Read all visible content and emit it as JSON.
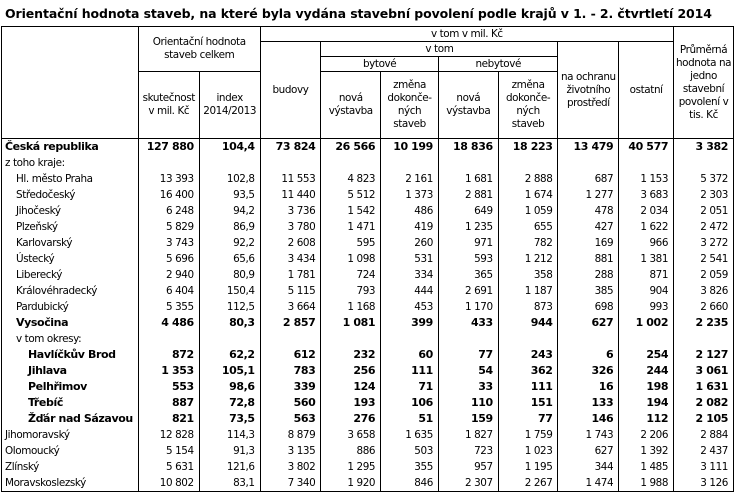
{
  "title": "Orientační hodnota staveb, na které byla vydána stavební povolení podle krajů v 1. - 2. čtvrtletí  2014",
  "header": {
    "total_group": "Orientační hodnota staveb celkem",
    "actual": "skutečnost v mil. Kč",
    "index": "index 2014/2013",
    "breakdown_group": "v tom v mil. Kč",
    "buildings": "budovy",
    "v_tom": "v tom",
    "residential": "bytové",
    "nonresidential": "nebytové",
    "new_construction": "nová výstavba",
    "change": "změna dokonče-ných staveb",
    "new_construction2": "nová výstavba",
    "change2": "změna dokonče-ných staveb",
    "environment": "na ochranu životního prostředí",
    "other": "ostatní",
    "average": "Průměrná hodnota na jedno stavební povolení v tis. Kč"
  },
  "rows": [
    {
      "label": "Česká republika",
      "bold": true,
      "indent": 0,
      "values": [
        "127 880",
        "104,4",
        "73 824",
        "26 566",
        "10 199",
        "18 836",
        "18 223",
        "13 479",
        "40 577",
        "3 382"
      ]
    },
    {
      "label": "z toho kraje:",
      "indent": 0,
      "values": [
        "",
        "",
        "",
        "",
        "",
        "",
        "",
        "",
        "",
        ""
      ]
    },
    {
      "label": "Hl. město Praha",
      "indent": 1,
      "values": [
        "13 393",
        "102,8",
        "11 553",
        "4 823",
        "2 161",
        "1 681",
        "2 888",
        "687",
        "1 153",
        "5 372"
      ]
    },
    {
      "label": "Středočeský",
      "indent": 1,
      "values": [
        "16 400",
        "93,5",
        "11 440",
        "5 512",
        "1 373",
        "2 881",
        "1 674",
        "1 277",
        "3 683",
        "2 303"
      ]
    },
    {
      "label": "Jihočeský",
      "indent": 1,
      "values": [
        "6 248",
        "94,2",
        "3 736",
        "1 542",
        "486",
        "649",
        "1 059",
        "478",
        "2 034",
        "2 051"
      ]
    },
    {
      "label": "Plzeňský",
      "indent": 1,
      "values": [
        "5 829",
        "86,9",
        "3 780",
        "1 471",
        "419",
        "1 235",
        "655",
        "427",
        "1 622",
        "2 472"
      ]
    },
    {
      "label": "Karlovarský",
      "indent": 1,
      "values": [
        "3 743",
        "92,2",
        "2 608",
        "595",
        "260",
        "971",
        "782",
        "169",
        "966",
        "3 272"
      ]
    },
    {
      "label": "Ústecký",
      "indent": 1,
      "values": [
        "5 696",
        "65,6",
        "3 434",
        "1 098",
        "531",
        "593",
        "1 212",
        "881",
        "1 381",
        "2 541"
      ]
    },
    {
      "label": "Liberecký",
      "indent": 1,
      "values": [
        "2 940",
        "80,9",
        "1 781",
        "724",
        "334",
        "365",
        "358",
        "288",
        "871",
        "2 059"
      ]
    },
    {
      "label": "Královéhradecký",
      "indent": 1,
      "values": [
        "6 404",
        "150,4",
        "5 115",
        "793",
        "444",
        "2 691",
        "1 187",
        "385",
        "904",
        "3 826"
      ]
    },
    {
      "label": "Pardubický",
      "indent": 1,
      "values": [
        "5 355",
        "112,5",
        "3 664",
        "1 168",
        "453",
        "1 170",
        "873",
        "698",
        "993",
        "2 660"
      ]
    },
    {
      "label": "Vysočina",
      "bold": true,
      "indent": 1,
      "values": [
        "4 486",
        "80,3",
        "2 857",
        "1 081",
        "399",
        "433",
        "944",
        "627",
        "1 002",
        "2 235"
      ]
    },
    {
      "label": "v tom okresy:",
      "indent": 1,
      "values": [
        "",
        "",
        "",
        "",
        "",
        "",
        "",
        "",
        "",
        ""
      ]
    },
    {
      "label": "Havlíčkův Brod",
      "bold": true,
      "indent": 2,
      "values": [
        "872",
        "62,2",
        "612",
        "232",
        "60",
        "77",
        "243",
        "6",
        "254",
        "2 127"
      ]
    },
    {
      "label": "Jihlava",
      "bold": true,
      "indent": 2,
      "values": [
        "1 353",
        "105,1",
        "783",
        "256",
        "111",
        "54",
        "362",
        "326",
        "244",
        "3 061"
      ]
    },
    {
      "label": "Pelhřimov",
      "bold": true,
      "indent": 2,
      "values": [
        "553",
        "98,6",
        "339",
        "124",
        "71",
        "33",
        "111",
        "16",
        "198",
        "1 631"
      ]
    },
    {
      "label": "Třebíč",
      "bold": true,
      "indent": 2,
      "values": [
        "887",
        "72,8",
        "560",
        "193",
        "106",
        "110",
        "151",
        "133",
        "194",
        "2 082"
      ]
    },
    {
      "label": "Žďár nad Sázavou",
      "bold": true,
      "indent": 2,
      "values": [
        "821",
        "73,5",
        "563",
        "276",
        "51",
        "159",
        "77",
        "146",
        "112",
        "2 105"
      ]
    },
    {
      "label": "Jihomoravský",
      "indent": 0,
      "values": [
        "12 828",
        "114,3",
        "8 879",
        "3 658",
        "1 635",
        "1 827",
        "1 759",
        "1 743",
        "2 206",
        "2 884"
      ]
    },
    {
      "label": "Olomoucký",
      "indent": 0,
      "values": [
        "5 154",
        "91,3",
        "3 135",
        "886",
        "503",
        "723",
        "1 023",
        "627",
        "1 392",
        "2 437"
      ]
    },
    {
      "label": "Zlínský",
      "indent": 0,
      "values": [
        "5 631",
        "121,6",
        "3 802",
        "1 295",
        "355",
        "957",
        "1 195",
        "344",
        "1 485",
        "3 111"
      ]
    },
    {
      "label": "Moravskoslezský",
      "indent": 0,
      "values": [
        "10 802",
        "83,1",
        "7 340",
        "1 920",
        "846",
        "2 307",
        "2 267",
        "1 474",
        "1 988",
        "3 126"
      ]
    }
  ]
}
